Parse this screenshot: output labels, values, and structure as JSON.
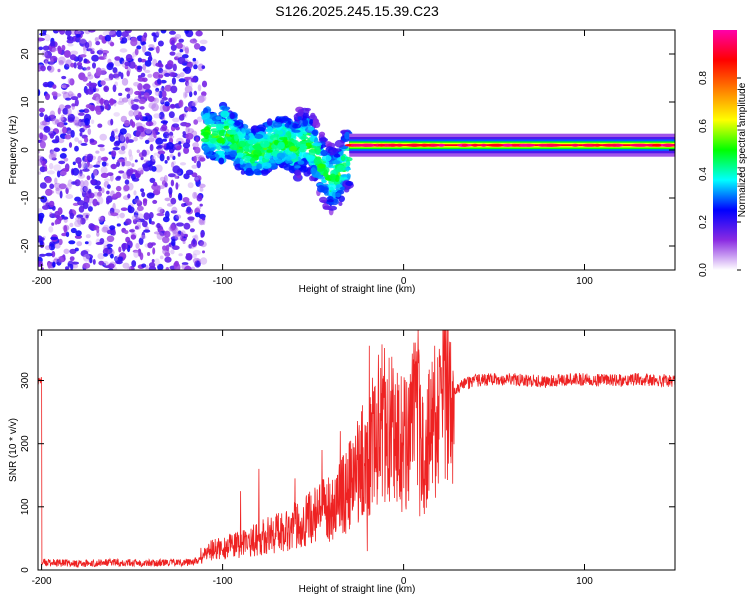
{
  "title": "S126.2025.245.15.39.C23",
  "chart_data": [
    {
      "type": "heatmap",
      "name": "spectrogram",
      "xlabel": "Height of straight line (km)",
      "ylabel": "Frequency (Hz)",
      "xlim": [
        -202,
        150
      ],
      "ylim": [
        -25,
        25
      ],
      "xticks": [
        -200,
        -100,
        0,
        100
      ],
      "xtick_labels": [
        "-200",
        "-100",
        "0",
        "100"
      ],
      "yticks": [
        -20,
        -10,
        0,
        10,
        20
      ],
      "ytick_labels": [
        "-20",
        "-10",
        "0",
        "10",
        "20"
      ],
      "colorbar": {
        "label": "Normalized spectral amplitude",
        "range": [
          0,
          1
        ],
        "ticks": [
          0.0,
          0.2,
          0.4,
          0.6,
          0.8
        ],
        "tick_labels": [
          "0.0",
          "0.2",
          "0.4",
          "0.6",
          "0.8"
        ],
        "colors": [
          "#ffffff",
          "#8a2be2",
          "#0000ff",
          "#00ffff",
          "#00ff00",
          "#ffff00",
          "#ff8000",
          "#ff0000",
          "#ff00aa"
        ]
      },
      "regions": [
        {
          "label": "noise",
          "x": [
            -202,
            -110
          ],
          "freq": [
            -25,
            25
          ],
          "amplitude": 0.15
        },
        {
          "label": "onset",
          "x": [
            -110,
            -30
          ],
          "freq": [
            -10,
            10
          ],
          "amplitude": 0.35
        },
        {
          "label": "tone",
          "x": [
            -30,
            150
          ],
          "freq": [
            0,
            2
          ],
          "amplitude": 0.9
        }
      ]
    },
    {
      "type": "line",
      "name": "snr",
      "xlabel": "Height of straight line (km)",
      "ylabel": "SNR (10 * v/v)",
      "xlim": [
        -202,
        150
      ],
      "ylim": [
        0,
        380
      ],
      "xticks": [
        -200,
        -100,
        0,
        100
      ],
      "xtick_labels": [
        "-200",
        "-100",
        "0",
        "100"
      ],
      "yticks": [
        0,
        100,
        200,
        300
      ],
      "ytick_labels": [
        "0",
        "100",
        "200",
        "300"
      ],
      "color": "#ee2222",
      "series": [
        {
          "name": "SNR",
          "x": [
            -200,
            -180,
            -160,
            -140,
            -120,
            -112,
            -108,
            -100,
            -90,
            -80,
            -70,
            -60,
            -50,
            -40,
            -30,
            -25,
            -20,
            -18,
            -15,
            -10,
            -5,
            0,
            5,
            8,
            10,
            12,
            15,
            20,
            25,
            30,
            40,
            50,
            60,
            70,
            80,
            90,
            100,
            110,
            120,
            130,
            140,
            150
          ],
          "y": [
            12,
            10,
            12,
            11,
            12,
            15,
            30,
            35,
            40,
            50,
            60,
            70,
            85,
            100,
            130,
            160,
            180,
            200,
            220,
            240,
            215,
            200,
            230,
            240,
            175,
            190,
            215,
            255,
            280,
            290,
            300,
            302,
            302,
            300,
            298,
            302,
            302,
            300,
            300,
            302,
            300,
            300
          ]
        }
      ],
      "peaks": [
        {
          "x": -112,
          "y": 35
        },
        {
          "x": -90,
          "y": 125
        },
        {
          "x": -80,
          "y": 160
        },
        {
          "x": -60,
          "y": 145
        },
        {
          "x": -45,
          "y": 190
        },
        {
          "x": -35,
          "y": 220
        },
        {
          "x": -19,
          "y": 355
        },
        {
          "x": 8,
          "y": 380
        }
      ],
      "dips": [
        {
          "x": -20,
          "y": 30
        },
        {
          "x": 9,
          "y": 85
        }
      ]
    }
  ]
}
